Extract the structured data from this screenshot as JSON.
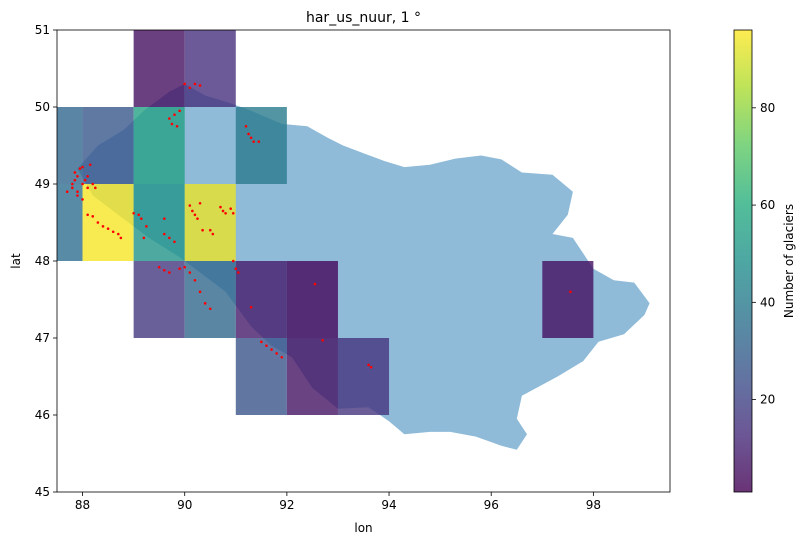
{
  "chart_data": {
    "type": "heatmap",
    "title": "har_us_nuur, 1 °",
    "xlabel": "lon",
    "ylabel": "lat",
    "xlim": [
      87.5,
      99.5
    ],
    "ylim": [
      45,
      51
    ],
    "xticks": [
      88,
      90,
      92,
      94,
      96,
      98
    ],
    "yticks": [
      45,
      46,
      47,
      48,
      49,
      50,
      51
    ],
    "colorbar": {
      "label": "Number of glaciers",
      "range": [
        1,
        96
      ],
      "ticks": [
        20,
        40,
        60,
        80
      ],
      "colormap": "viridis"
    },
    "cells": [
      {
        "lon": 89,
        "lat": 50,
        "count": 5
      },
      {
        "lon": 90,
        "lat": 50,
        "count": 14
      },
      {
        "lon": 87,
        "lat": 49,
        "count": 32
      },
      {
        "lon": 88,
        "lat": 49,
        "count": 27
      },
      {
        "lon": 89,
        "lat": 49,
        "count": 55
      },
      {
        "lon": 91,
        "lat": 49,
        "count": 40
      },
      {
        "lon": 87,
        "lat": 48,
        "count": 35
      },
      {
        "lon": 88,
        "lat": 48,
        "count": 95
      },
      {
        "lon": 89,
        "lat": 48,
        "count": 50
      },
      {
        "lon": 90,
        "lat": 48,
        "count": 93
      },
      {
        "lon": 89,
        "lat": 47,
        "count": 16
      },
      {
        "lon": 90,
        "lat": 47,
        "count": 33
      },
      {
        "lon": 91,
        "lat": 47,
        "count": 8
      },
      {
        "lon": 92,
        "lat": 47,
        "count": 3
      },
      {
        "lon": 97,
        "lat": 47,
        "count": 5
      },
      {
        "lon": 91,
        "lat": 46,
        "count": 26
      },
      {
        "lon": 92,
        "lat": 46,
        "count": 6
      },
      {
        "lon": 93,
        "lat": 46,
        "count": 15
      }
    ],
    "basin_polygon": [
      [
        90.0,
        50.3
      ],
      [
        90.4,
        50.15
      ],
      [
        90.9,
        50.05
      ],
      [
        91.3,
        49.95
      ],
      [
        91.9,
        49.78
      ],
      [
        92.4,
        49.75
      ],
      [
        92.8,
        49.6
      ],
      [
        93.1,
        49.5
      ],
      [
        93.5,
        49.4
      ],
      [
        93.9,
        49.3
      ],
      [
        94.3,
        49.22
      ],
      [
        94.8,
        49.25
      ],
      [
        95.3,
        49.33
      ],
      [
        95.8,
        49.37
      ],
      [
        96.2,
        49.32
      ],
      [
        96.6,
        49.15
      ],
      [
        97.2,
        49.12
      ],
      [
        97.6,
        48.9
      ],
      [
        97.5,
        48.6
      ],
      [
        97.2,
        48.35
      ],
      [
        97.6,
        48.3
      ],
      [
        98.0,
        47.9
      ],
      [
        98.4,
        47.75
      ],
      [
        98.8,
        47.72
      ],
      [
        99.1,
        47.45
      ],
      [
        99.0,
        47.3
      ],
      [
        98.6,
        47.05
      ],
      [
        98.1,
        46.95
      ],
      [
        97.8,
        46.7
      ],
      [
        97.3,
        46.5
      ],
      [
        96.6,
        46.25
      ],
      [
        96.5,
        45.95
      ],
      [
        96.7,
        45.75
      ],
      [
        96.5,
        45.55
      ],
      [
        96.2,
        45.6
      ],
      [
        95.7,
        45.72
      ],
      [
        95.2,
        45.78
      ],
      [
        94.8,
        45.78
      ],
      [
        94.3,
        45.75
      ],
      [
        94.0,
        45.92
      ],
      [
        93.6,
        46.1
      ],
      [
        93.0,
        46.08
      ],
      [
        92.5,
        46.35
      ],
      [
        92.1,
        46.75
      ],
      [
        91.7,
        46.9
      ],
      [
        91.3,
        47.15
      ],
      [
        90.8,
        47.6
      ],
      [
        90.3,
        47.85
      ],
      [
        89.9,
        48.05
      ],
      [
        89.3,
        48.3
      ],
      [
        88.8,
        48.55
      ],
      [
        88.2,
        48.85
      ],
      [
        87.9,
        49.2
      ],
      [
        88.3,
        49.5
      ],
      [
        88.8,
        49.7
      ],
      [
        89.2,
        49.95
      ],
      [
        89.7,
        50.2
      ]
    ],
    "glacier_points": [
      [
        87.8,
        48.95
      ],
      [
        87.8,
        49.0
      ],
      [
        87.85,
        49.05
      ],
      [
        87.85,
        49.15
      ],
      [
        87.9,
        48.9
      ],
      [
        87.9,
        49.1
      ],
      [
        87.95,
        49.2
      ],
      [
        88.0,
        49.0
      ],
      [
        88.0,
        48.8
      ],
      [
        88.05,
        49.05
      ],
      [
        88.1,
        48.95
      ],
      [
        88.15,
        49.25
      ],
      [
        88.2,
        49.0
      ],
      [
        88.25,
        48.95
      ],
      [
        87.9,
        48.85
      ],
      [
        87.7,
        48.9
      ],
      [
        88.0,
        49.22
      ],
      [
        88.1,
        49.1
      ],
      [
        88.1,
        48.6
      ],
      [
        88.2,
        48.58
      ],
      [
        88.3,
        48.5
      ],
      [
        88.4,
        48.45
      ],
      [
        88.5,
        48.42
      ],
      [
        88.6,
        48.38
      ],
      [
        88.7,
        48.35
      ],
      [
        88.75,
        48.3
      ],
      [
        89.0,
        48.62
      ],
      [
        89.1,
        48.6
      ],
      [
        89.15,
        48.55
      ],
      [
        89.25,
        48.45
      ],
      [
        89.2,
        48.3
      ],
      [
        89.6,
        48.35
      ],
      [
        89.7,
        48.3
      ],
      [
        89.8,
        48.25
      ],
      [
        89.6,
        48.55
      ],
      [
        89.5,
        47.92
      ],
      [
        89.6,
        47.88
      ],
      [
        89.7,
        47.85
      ],
      [
        89.9,
        47.9
      ],
      [
        90.0,
        47.92
      ],
      [
        90.1,
        47.85
      ],
      [
        90.1,
        48.72
      ],
      [
        90.15,
        48.65
      ],
      [
        90.2,
        48.6
      ],
      [
        90.25,
        48.55
      ],
      [
        90.35,
        48.4
      ],
      [
        90.5,
        48.4
      ],
      [
        90.55,
        48.35
      ],
      [
        90.7,
        48.7
      ],
      [
        90.75,
        48.65
      ],
      [
        90.8,
        48.62
      ],
      [
        90.9,
        48.68
      ],
      [
        90.95,
        48.62
      ],
      [
        90.3,
        48.75
      ],
      [
        89.7,
        49.85
      ],
      [
        89.75,
        49.78
      ],
      [
        89.8,
        49.9
      ],
      [
        89.85,
        49.75
      ],
      [
        89.9,
        49.95
      ],
      [
        90.0,
        50.3
      ],
      [
        90.1,
        50.25
      ],
      [
        90.2,
        50.3
      ],
      [
        90.3,
        50.28
      ],
      [
        91.2,
        49.75
      ],
      [
        91.25,
        49.65
      ],
      [
        91.3,
        49.6
      ],
      [
        91.35,
        49.55
      ],
      [
        91.45,
        49.55
      ],
      [
        90.2,
        47.75
      ],
      [
        90.3,
        47.6
      ],
      [
        90.4,
        47.45
      ],
      [
        90.5,
        47.38
      ],
      [
        90.95,
        48.0
      ],
      [
        91.0,
        47.9
      ],
      [
        91.05,
        47.85
      ],
      [
        91.3,
        47.4
      ],
      [
        91.5,
        46.95
      ],
      [
        91.6,
        46.9
      ],
      [
        91.7,
        46.85
      ],
      [
        91.8,
        46.8
      ],
      [
        91.9,
        46.75
      ],
      [
        92.55,
        47.7
      ],
      [
        92.7,
        46.97
      ],
      [
        93.6,
        46.65
      ],
      [
        93.65,
        46.62
      ],
      [
        97.55,
        47.6
      ]
    ]
  }
}
